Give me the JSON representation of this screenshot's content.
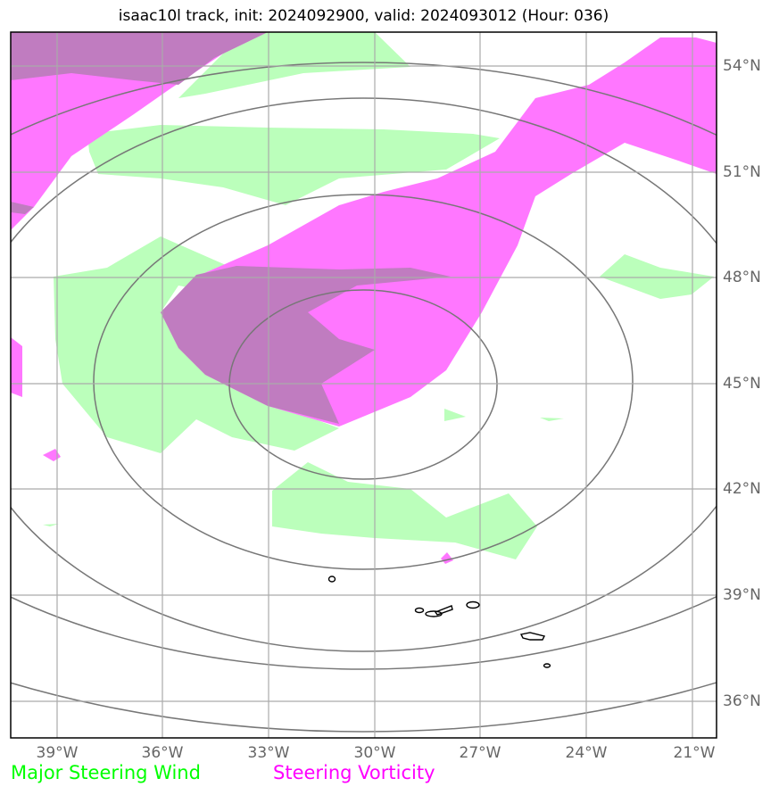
{
  "title": "isaac10l track, init: 2024092900, valid: 2024093012 (Hour: 036)",
  "lat_labels": [
    "54°N",
    "51°N",
    "48°N",
    "45°N",
    "42°N",
    "39°N",
    "36°N"
  ],
  "lon_labels": [
    "39°W",
    "36°W",
    "33°W",
    "30°W",
    "27°W",
    "24°W",
    "21°W"
  ],
  "legend": {
    "wind_label": "Major Steering Wind",
    "vorticity_label": "Steering Vorticity"
  },
  "colors": {
    "wind": "#00ff00",
    "wind_fill": "#bbffbb",
    "vorticity": "#ff00ff",
    "vorticity_fill": "#ff77ff",
    "overlap": "#c07cc0",
    "contour": "#777777",
    "grid": "#aaaaaa",
    "coast": "#000000"
  },
  "extent": {
    "lon_min": -40.3,
    "lon_max": -20.3,
    "lat_min": 35,
    "lat_max": 55
  },
  "grid_lats": [
    54,
    51,
    48,
    45,
    42,
    39,
    36
  ],
  "grid_lons": [
    -39,
    -36,
    -33,
    -30,
    -27,
    -24,
    -21
  ]
}
